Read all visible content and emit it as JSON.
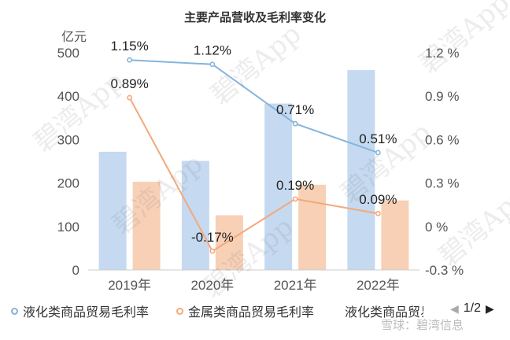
{
  "chart_data": {
    "type": "bar",
    "title": "主要产品营收及毛利率变化",
    "categories": [
      "2019年",
      "2020年",
      "2021年",
      "2022年"
    ],
    "left_axis": {
      "unit": "亿元",
      "range": [
        0,
        500
      ],
      "ticks": [
        "0",
        "100",
        "200",
        "300",
        "400",
        "500"
      ]
    },
    "right_axis": {
      "range": [
        -0.3,
        1.2
      ],
      "ticks": [
        "-0.3 %",
        "0 %",
        "0.3 %",
        "0.6 %",
        "0.9 %",
        "1.2 %"
      ]
    },
    "bar_series": [
      {
        "name": "液化类商品贸易",
        "color": "#c5d9f0",
        "values": [
          272,
          251,
          383,
          460
        ]
      },
      {
        "color": "#f7d0b6",
        "values": [
          203,
          126,
          196,
          160
        ]
      }
    ],
    "line_series": [
      {
        "name": "液化类商品贸易毛利率",
        "color": "#85b4dc",
        "values": [
          1.15,
          1.12,
          0.71,
          0.51
        ],
        "labels": [
          "1.15%",
          "1.12%",
          "0.71%",
          "0.51%"
        ]
      },
      {
        "name": "金属类商品贸易毛利率",
        "color": "#f2a979",
        "values": [
          0.89,
          -0.17,
          0.19,
          0.09
        ],
        "labels": [
          "0.89%",
          "-0.17%",
          "0.19%",
          "0.09%"
        ]
      }
    ],
    "grid": false
  },
  "legend": {
    "items": [
      "液化类商品贸易毛利率",
      "金属类商品贸易毛利率",
      "液化类商品贸易"
    ],
    "page": "1/2"
  },
  "watermark": {
    "text": "碧湾App",
    "footer": "雪球：碧湾信息"
  }
}
